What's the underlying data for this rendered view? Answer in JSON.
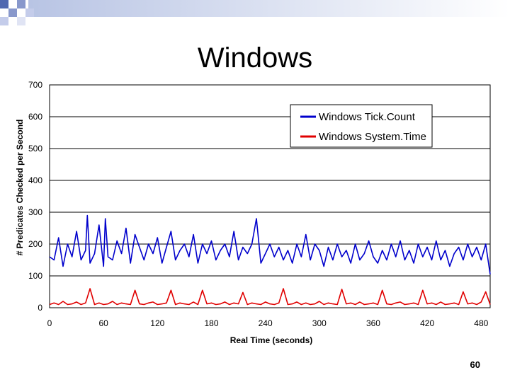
{
  "slide": {
    "title": "Windows",
    "page_number": "60"
  },
  "colors": {
    "tickcount": "#0000cc",
    "systemtime": "#e00000",
    "deco_blue": "#5068b0"
  },
  "chart_data": {
    "type": "line",
    "title": "",
    "xlabel": "Real Time (seconds)",
    "ylabel": "# Predicates Checked per Second",
    "xlim": [
      0,
      490
    ],
    "ylim": [
      0,
      700
    ],
    "xticks": [
      0,
      60,
      120,
      180,
      240,
      300,
      360,
      420,
      480
    ],
    "yticks": [
      0,
      100,
      200,
      300,
      400,
      500,
      600,
      700
    ],
    "grid": "horizontal",
    "legend_position": "top-right",
    "series": [
      {
        "name": "Windows Tick.Count",
        "color": "#0000cc",
        "x": [
          0,
          5,
          10,
          15,
          20,
          25,
          30,
          35,
          40,
          42,
          45,
          50,
          55,
          60,
          62,
          65,
          70,
          75,
          80,
          85,
          90,
          95,
          100,
          105,
          110,
          115,
          120,
          125,
          130,
          135,
          140,
          145,
          150,
          155,
          160,
          165,
          170,
          175,
          180,
          185,
          190,
          195,
          200,
          205,
          210,
          215,
          220,
          225,
          230,
          235,
          240,
          245,
          250,
          255,
          260,
          265,
          270,
          275,
          280,
          285,
          290,
          295,
          300,
          305,
          310,
          315,
          320,
          325,
          330,
          335,
          340,
          345,
          350,
          355,
          360,
          365,
          370,
          375,
          380,
          385,
          390,
          395,
          400,
          405,
          410,
          415,
          420,
          425,
          430,
          435,
          440,
          445,
          450,
          455,
          460,
          465,
          470,
          475,
          480,
          485,
          490
        ],
        "y": [
          160,
          150,
          220,
          130,
          200,
          160,
          240,
          150,
          180,
          290,
          140,
          170,
          260,
          130,
          280,
          160,
          150,
          210,
          170,
          250,
          140,
          230,
          190,
          150,
          200,
          170,
          220,
          140,
          190,
          240,
          150,
          180,
          200,
          160,
          230,
          140,
          200,
          170,
          210,
          150,
          180,
          200,
          160,
          240,
          150,
          190,
          170,
          200,
          280,
          140,
          170,
          200,
          160,
          190,
          150,
          180,
          140,
          200,
          160,
          230,
          150,
          200,
          180,
          130,
          190,
          150,
          200,
          160,
          180,
          140,
          200,
          150,
          170,
          210,
          160,
          140,
          180,
          150,
          200,
          160,
          210,
          150,
          180,
          140,
          200,
          160,
          190,
          150,
          210,
          150,
          180,
          130,
          170,
          190,
          150,
          200,
          160,
          190,
          150,
          200,
          105
        ]
      },
      {
        "name": "Windows System.Time",
        "color": "#e00000",
        "x": [
          0,
          5,
          10,
          15,
          20,
          25,
          30,
          35,
          40,
          45,
          50,
          55,
          60,
          65,
          70,
          75,
          80,
          85,
          90,
          95,
          100,
          105,
          110,
          115,
          120,
          125,
          130,
          135,
          140,
          145,
          150,
          155,
          160,
          165,
          170,
          175,
          180,
          185,
          190,
          195,
          200,
          205,
          210,
          215,
          220,
          225,
          230,
          235,
          240,
          245,
          250,
          255,
          260,
          265,
          270,
          275,
          280,
          285,
          290,
          295,
          300,
          305,
          310,
          315,
          320,
          325,
          330,
          335,
          340,
          345,
          350,
          355,
          360,
          365,
          370,
          375,
          380,
          385,
          390,
          395,
          400,
          405,
          410,
          415,
          420,
          425,
          430,
          435,
          440,
          445,
          450,
          455,
          460,
          465,
          470,
          475,
          480,
          485,
          490
        ],
        "y": [
          10,
          15,
          10,
          20,
          10,
          12,
          18,
          10,
          15,
          60,
          10,
          15,
          10,
          12,
          20,
          10,
          15,
          12,
          10,
          55,
          12,
          10,
          15,
          18,
          10,
          12,
          15,
          55,
          10,
          15,
          12,
          10,
          18,
          10,
          55,
          12,
          15,
          10,
          12,
          18,
          10,
          15,
          12,
          48,
          10,
          15,
          12,
          10,
          18,
          12,
          10,
          15,
          60,
          10,
          12,
          18,
          10,
          15,
          10,
          12,
          20,
          10,
          15,
          12,
          10,
          58,
          12,
          15,
          10,
          18,
          10,
          12,
          15,
          10,
          55,
          12,
          10,
          15,
          18,
          10,
          12,
          15,
          10,
          55,
          12,
          15,
          10,
          18,
          10,
          12,
          15,
          10,
          50,
          12,
          15,
          10,
          18,
          50,
          10
        ]
      }
    ]
  }
}
